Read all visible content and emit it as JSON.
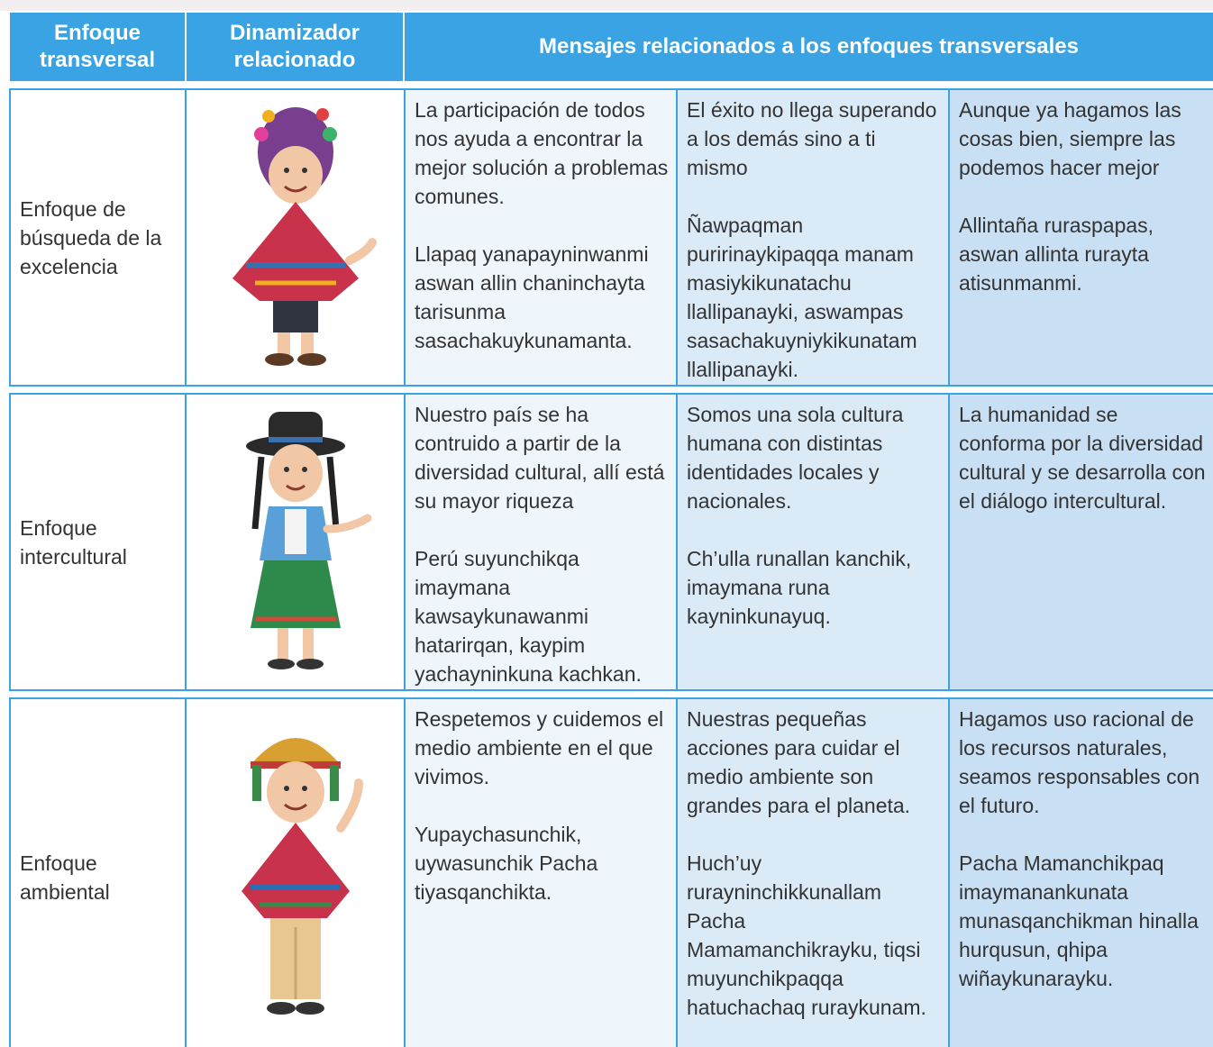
{
  "table": {
    "header": [
      "Enfoque transversal",
      "Dinamizador relacionado",
      "Mensajes relacionados a los enfoques transversales"
    ],
    "rows": [
      {
        "enfoque": "Enfoque de búsqueda de la excelencia",
        "messages": [
          [
            "La participación de todos nos ayuda a encontrar la mejor solución a problemas comunes.",
            "Llapaq yanapayninwanmi aswan allin chaninchayta tarisunma sasachakuykunamanta."
          ],
          [
            "El éxito no llega superando a los demás sino a ti mismo",
            "Ñawpaqman puririnaykipaqqa manam masiykikunatachu llallipanayki, aswampas sasachakuyniykikunatam llallipanayki."
          ],
          [
            "Aunque ya hagamos las cosas bien, siempre las podemos hacer mejor",
            "Allintaña ruraspapas, aswan allinta rurayta atisunmanmi."
          ]
        ]
      },
      {
        "enfoque": "Enfoque intercultural",
        "messages": [
          [
            "Nuestro país se ha contruido a partir de la diversidad cultural, allí está su mayor riqueza",
            "Perú suyunchikqa imaymana kawsaykunawanmi hatarirqan, kaypim yachayninkuna kachkan."
          ],
          [
            "Somos una sola cultura humana con distintas identidades locales y nacionales.",
            "Ch’ulla runallan kanchik, imaymana runa kayninkunayuq."
          ],
          [
            "La humanidad se conforma por la diversidad cultural y se desarrolla con el diálogo intercultural."
          ]
        ]
      },
      {
        "enfoque": "Enfoque ambiental",
        "messages": [
          [
            "Respetemos y cuidemos el medio ambiente en el que vivimos.",
            "Yupaychasunchik, uywasunchik Pacha tiyasqanchikta."
          ],
          [
            "Nuestras pequeñas acciones para cuidar el medio ambiente son grandes para el planeta.",
            "Huch’uy rurayninchikkunallam Pacha Mamamanchikrayku, tiqsi muyunchikpaqqa hatuchachaq ruraykunam."
          ],
          [
            "Hagamos uso racional de los recursos naturales, seamos responsables con el futuro.",
            "Pacha Mamanchikpaq imaymanankunata munasqanchikman hinalla hurqusun, qhipa wiñaykunarayku."
          ]
        ]
      }
    ]
  }
}
